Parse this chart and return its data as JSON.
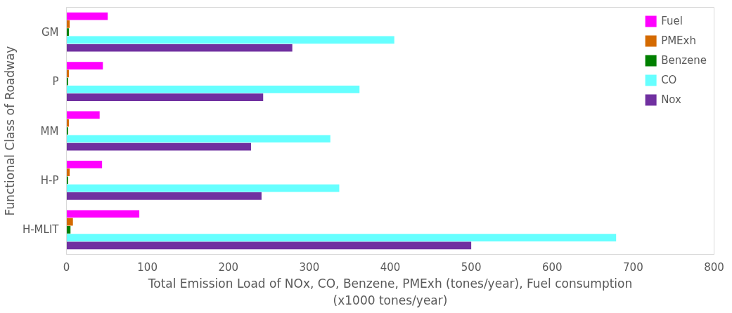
{
  "chart_data": {
    "type": "bar",
    "orientation": "horizontal",
    "xlabel": "Total Emission Load of NOx, CO, Benzene, PMExh (tones/year), Fuel consumption (x1000 tones/year)",
    "ylabel": "Functional Class of Roadway",
    "categories": [
      "GM",
      "P",
      "MM",
      "H-P",
      "H-MLIT"
    ],
    "series": [
      {
        "name": "Fuel",
        "color": "#ff00ff",
        "values": [
          51,
          45,
          41,
          44,
          90
        ]
      },
      {
        "name": "PMExh",
        "color": "#d46a00",
        "values": [
          4,
          3,
          3,
          4,
          8
        ]
      },
      {
        "name": "Benzene",
        "color": "#008000",
        "values": [
          3,
          2,
          2,
          2,
          5
        ]
      },
      {
        "name": "CO",
        "color": "#66ffff",
        "values": [
          405,
          362,
          326,
          337,
          679
        ]
      },
      {
        "name": "Nox",
        "color": "#7030a0",
        "values": [
          279,
          243,
          228,
          241,
          500
        ]
      }
    ],
    "xlim": [
      0,
      800
    ],
    "xticks": [
      0,
      100,
      200,
      300,
      400,
      500,
      600,
      700,
      800
    ],
    "grid": false,
    "legend": "top right"
  }
}
